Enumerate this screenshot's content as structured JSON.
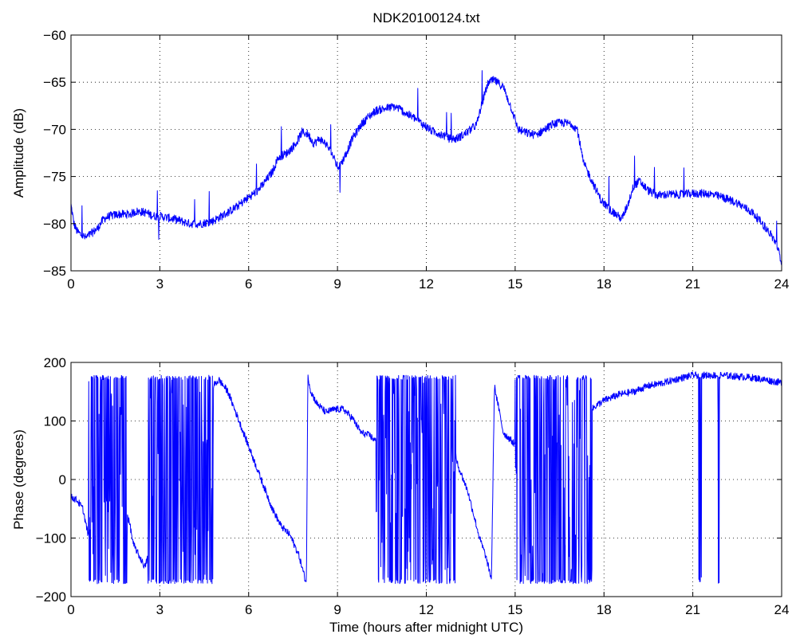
{
  "chart_data": [
    {
      "type": "line",
      "title": "NDK20100124.txt",
      "xlabel": "",
      "ylabel": "Amplitude (dB)",
      "xlim": [
        0,
        24
      ],
      "ylim": [
        -85,
        -60
      ],
      "xticks": [
        "0",
        "3",
        "6",
        "9",
        "12",
        "15",
        "18",
        "21",
        "24"
      ],
      "yticks": [
        "-60",
        "-65",
        "-70",
        "-75",
        "-80",
        "-85"
      ],
      "grid": true,
      "line_color": "#0000ff",
      "series": [
        {
          "x": [
            0,
            0.1,
            0.2,
            0.35,
            0.5,
            0.7,
            0.9,
            1.1,
            1.3,
            1.6,
            2.0,
            2.2,
            2.5,
            2.8,
            3.0,
            3.3,
            3.6,
            4.0,
            4.4,
            4.8,
            5.2,
            5.6,
            6.0,
            6.3,
            6.5,
            6.8,
            7.0,
            7.3,
            7.6,
            7.8,
            8.0,
            8.2,
            8.4,
            8.6,
            8.8,
            9.0,
            9.1,
            9.3,
            9.5,
            9.8,
            10.0,
            10.3,
            10.6,
            10.9,
            11.1,
            11.3,
            11.6,
            11.9,
            12.2,
            12.5,
            12.8,
            13.0,
            13.3,
            13.5,
            13.7,
            13.9,
            14.1,
            14.3,
            14.6,
            14.9,
            15.1,
            15.4,
            15.7,
            16.0,
            16.3,
            16.6,
            16.9,
            17.1,
            17.3,
            17.6,
            17.9,
            18.2,
            18.4,
            18.6,
            18.8,
            19.0,
            19.2,
            19.5,
            19.8,
            20.2,
            20.6,
            21.0,
            21.5,
            22.0,
            22.5,
            23.0,
            23.3,
            23.6,
            23.8,
            24.0
          ],
          "y": [
            -78,
            -80,
            -80.8,
            -81.2,
            -81.5,
            -81,
            -80.5,
            -79.5,
            -79.2,
            -79.0,
            -79.0,
            -78.7,
            -78.8,
            -79.2,
            -79.2,
            -79.4,
            -79.6,
            -80.0,
            -80.0,
            -79.7,
            -79.0,
            -78.2,
            -77.2,
            -76.5,
            -75.8,
            -74.5,
            -73.0,
            -72.5,
            -71.5,
            -70.3,
            -70.5,
            -71.5,
            -71.0,
            -71.5,
            -72.5,
            -74.0,
            -73.8,
            -72.5,
            -71.0,
            -69.5,
            -68.8,
            -68.0,
            -67.8,
            -67.6,
            -67.8,
            -68.3,
            -68.8,
            -69.5,
            -70.2,
            -70.5,
            -71.0,
            -71.0,
            -70.5,
            -70.0,
            -69.5,
            -67.0,
            -65.0,
            -64.8,
            -65.5,
            -68.0,
            -70.0,
            -70.4,
            -70.6,
            -70.0,
            -69.4,
            -69.3,
            -69.4,
            -70.0,
            -73.5,
            -75.5,
            -77.5,
            -78.5,
            -79.0,
            -79.5,
            -78.0,
            -76.0,
            -75.5,
            -76.5,
            -77.0,
            -76.9,
            -76.9,
            -76.8,
            -76.8,
            -77.2,
            -77.8,
            -78.8,
            -79.8,
            -81.0,
            -82.0,
            -84.0
          ]
        }
      ]
    },
    {
      "type": "line",
      "title": "",
      "xlabel": "Time (hours after midnight UTC)",
      "ylabel": "Phase (degrees)",
      "xlim": [
        0,
        24
      ],
      "ylim": [
        -200,
        200
      ],
      "xticks": [
        "0",
        "3",
        "6",
        "9",
        "12",
        "15",
        "18",
        "21",
        "24"
      ],
      "yticks": [
        "200",
        "100",
        "0",
        "-100",
        "-200"
      ],
      "grid": true,
      "line_color": "#0000ff",
      "series": [
        {
          "x": [
            0,
            0.2,
            0.4,
            0.5,
            0.6,
            0.8,
            1.0,
            1.2,
            1.4,
            1.6,
            1.8,
            1.9,
            2.0,
            2.1,
            2.3,
            2.5,
            2.8,
            3.1,
            3.4,
            3.7,
            4.0,
            4.3,
            4.6,
            4.8,
            5.0,
            5.3,
            5.6,
            5.9,
            6.2,
            6.5,
            6.8,
            7.1,
            7.4,
            7.7,
            7.95,
            8.0,
            8.1,
            8.3,
            8.6,
            8.9,
            9.2,
            9.5,
            9.8,
            10.1,
            10.4,
            10.7,
            11.0,
            11.3,
            11.6,
            11.9,
            12.2,
            12.5,
            12.8,
            13.1,
            13.4,
            13.6,
            13.8,
            14.0,
            14.2,
            14.3,
            14.6,
            15.0,
            15.3,
            15.6,
            15.9,
            16.2,
            16.5,
            16.8,
            17.1,
            17.4,
            17.7,
            18.0,
            18.5,
            19.0,
            19.5,
            20.0,
            20.5,
            21.0,
            21.5,
            22.0,
            22.5,
            23.0,
            23.5,
            24.0
          ],
          "y": [
            -30,
            -35,
            -50,
            -75,
            -100,
            170,
            175,
            160,
            150,
            130,
            100,
            -60,
            -80,
            -110,
            -130,
            -150,
            -90,
            -40,
            20,
            60,
            80,
            100,
            130,
            160,
            170,
            150,
            110,
            70,
            30,
            -10,
            -50,
            -80,
            -95,
            -130,
            -178,
            178,
            150,
            130,
            115,
            120,
            120,
            105,
            80,
            75,
            60,
            70,
            75,
            80,
            70,
            65,
            65,
            70,
            60,
            20,
            -20,
            -60,
            -100,
            -130,
            -170,
            160,
            80,
            60,
            80,
            70,
            100,
            90,
            100,
            120,
            140,
            110,
            125,
            135,
            145,
            150,
            160,
            165,
            172,
            178,
            178,
            178,
            176,
            174,
            170,
            165
          ]
        }
      ],
      "wrap_segments": [
        {
          "x0": 0.6,
          "x1": 1.9
        },
        {
          "x0": 2.6,
          "x1": 4.8
        },
        {
          "x0": 10.3,
          "x1": 13.0
        },
        {
          "x0": 15.0,
          "x1": 17.6
        },
        {
          "x0": 21.2,
          "x1": 21.3
        },
        {
          "x0": 21.85,
          "x1": 21.9
        }
      ]
    }
  ]
}
